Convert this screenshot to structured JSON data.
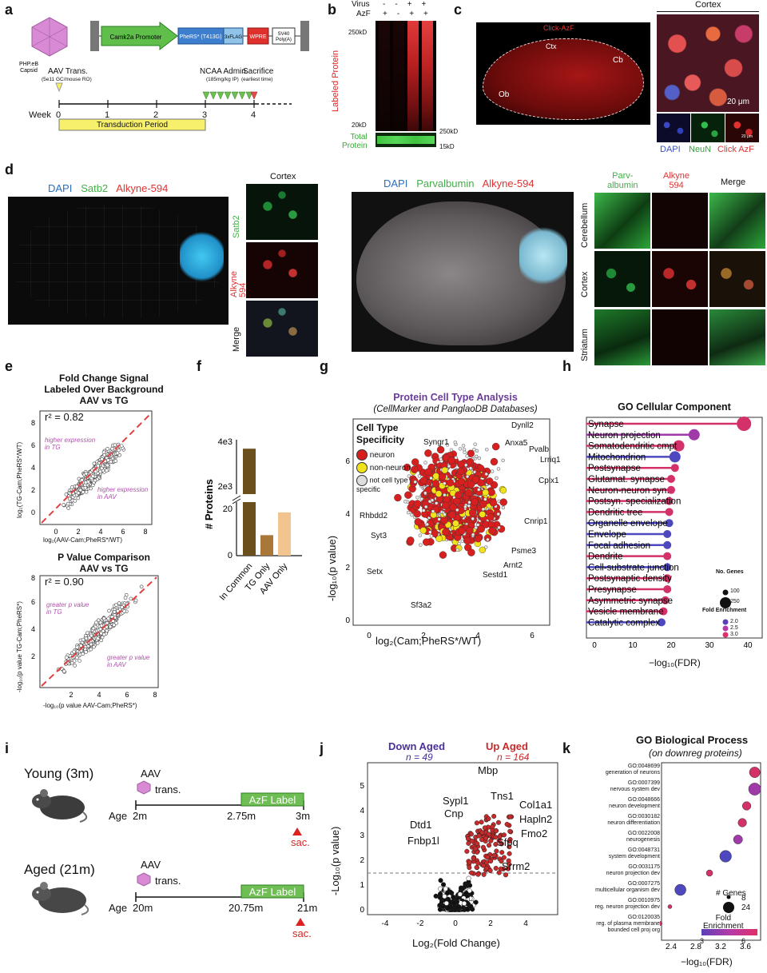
{
  "panels": {
    "a": "a",
    "b": "b",
    "c": "c",
    "d": "d",
    "e": "e",
    "f": "f",
    "g": "g",
    "h": "h",
    "i": "i",
    "j": "j",
    "k": "k"
  },
  "a": {
    "capsid": "PHP.eB\nCapsid",
    "itr": "ITR",
    "promoter": "Camk2a Promoter",
    "pheRS": "PheRS* (T413G)",
    "flag": "3xFLAG",
    "wpre": "WPRE",
    "sv40": "SV40\nPoly(A)",
    "aav_trans": "AAV Trans.",
    "aav_dose": "(5e11 GC/mouse RO)",
    "ncaa": "NCAA Admin.",
    "ncaa_dose": "(185mg/kg IP)",
    "sac": "Sacrifice",
    "sac_note": "(earliest time)",
    "week": "Week",
    "weeks": [
      "0",
      "1",
      "2",
      "3",
      "4"
    ],
    "transduction": "Transduction Period",
    "colors": {
      "capsid": "#d88bd4",
      "promoter": "#5fbf4a",
      "pheRS": "#3d7ecf",
      "flag": "#8fc4e8",
      "wpre": "#e0302c",
      "bar": "#f7f06b"
    }
  },
  "b": {
    "virus": "Virus",
    "azf": "AzF",
    "virus_marks": [
      "-",
      "-",
      "+",
      "+"
    ],
    "azf_marks": [
      "+",
      "-",
      "+",
      "+"
    ],
    "kd250": "250kD",
    "kd20": "20kD",
    "kd250b": "250kD",
    "kd15": "15kD",
    "labeled": "Labeled Protein",
    "total": "Total\nProtein"
  },
  "c": {
    "title": "Click-AzF",
    "ctx": "Ctx",
    "cb": "Cb",
    "ob": "Ob",
    "cortex": "Cortex",
    "scale": "20 μm",
    "scale_small": "20 μm",
    "dapi": "DAPI",
    "neun": "NeuN",
    "click": "Click AzF"
  },
  "d": {
    "dapi": "DAPI",
    "satb2": "Satb2",
    "alkyne": "Alkyne-594",
    "cortex": "Cortex",
    "row_satb2": "Satb2",
    "row_alkyne": "Alkyne\n594",
    "row_merge": "Merge",
    "dapi2": "DAPI",
    "parv": "Parvalbumin",
    "alkyne2": "Alkyne-594",
    "col_parv": "Parv-\nalbumin",
    "col_alk": "Alkyne\n594",
    "col_merge": "Merge",
    "row_cereb": "Cerebellum",
    "row_cortex": "Cortex",
    "row_striatum": "Striatum"
  },
  "e": {
    "title1": "Fold Change Signal",
    "title2": "Labeled Over Background",
    "title3": "AAV vs TG",
    "r2a": "r² = 0.82",
    "higher_tg": "higher expression\nin TG",
    "higher_aav": "higher expression\nin AAV",
    "xlab1": "log₂(AAV-Cam;PheRS*/WT)",
    "ylab1": "log₂(TG-Cam;PheRS*/WT)",
    "ticks_x": [
      "0",
      "2",
      "4",
      "6",
      "8"
    ],
    "ticks_y": [
      "0",
      "2",
      "4",
      "6",
      "8"
    ],
    "title4": "P Value Comparison",
    "title5": "AAV vs TG",
    "r2b": "r² = 0.90",
    "greater_tg": "greater p value\nin TG",
    "greater_aav": "greater p value\nin AAV",
    "xlab2": "-log₁₀(p value AAV-Cam;PheRS*)",
    "ylab2": "-log₁₀(p value TG-Cam;PheRS*)"
  },
  "f": {
    "ylabel": "# Proteins",
    "ticks": [
      "0",
      "20",
      "2e3",
      "4e3"
    ],
    "categories": [
      "In Common",
      "TG Only",
      "AAV Only"
    ]
  },
  "g": {
    "title": "Protein Cell Type Analysis",
    "subtitle": "(CellMarker and PanglaoDB Databases)",
    "legend_title": "Cell Type\nSpecificity",
    "legend": [
      "neuron",
      "non-neuron",
      "not cell type\nspecific"
    ],
    "xlabel": "log₂(Cam;PheRS*/WT)",
    "ylabel": "-log₁₀(p value)",
    "xticks": [
      "0",
      "2",
      "4",
      "6"
    ],
    "yticks": [
      "0",
      "2",
      "4",
      "6"
    ],
    "genes": [
      "Dynll2",
      "Anxa5",
      "Pvalb",
      "Lrriq1",
      "Syngr1",
      "Cplx1",
      "Rhbdd2",
      "Syt3",
      "Cnrip1",
      "Psme3",
      "Arnt2",
      "Sestd1",
      "Setx",
      "Sf3a2"
    ]
  },
  "h": {
    "title": "GO Cellular Component",
    "terms": [
      "Synapse",
      "Neuron projection",
      "Somatodendritic cmpt",
      "Mitochondrion",
      "Postsynapse",
      "Glutamat. synapse",
      "Neuron-neuron syn.",
      "Postsyn. specialization",
      "Dendritic tree",
      "Organelle envelope",
      "Envelope",
      "Focal adhesion",
      "Dendrite",
      "Cell-substrate junction",
      "Postsynaptic density",
      "Presynapse",
      "Asymmetric synapse",
      "Vesicle membrane",
      "Catalytic complex"
    ],
    "xlabel": "−log₁₀(FDR)",
    "xticks": [
      "0",
      "10",
      "20",
      "30",
      "40"
    ],
    "ng_title": "No. Genes",
    "ng_vals": [
      "100",
      "250"
    ],
    "fe_title": "Fold Enrichment",
    "fe_vals": [
      "2.0",
      "2.5",
      "3.0"
    ]
  },
  "i": {
    "young": "Young (3m)",
    "aged": "Aged (21m)",
    "aav": "AAV",
    "trans": "trans.",
    "azf_label": "AzF Label",
    "age": "Age",
    "young_ages": [
      "2m",
      "2.75m",
      "3m"
    ],
    "aged_ages": [
      "20m",
      "20.75m",
      "21m"
    ],
    "sac": "sac."
  },
  "j": {
    "down": "Down Aged",
    "down_n": "n = 49",
    "up": "Up Aged",
    "up_n": "n = 164",
    "xlabel": "Log₂(Fold Change)",
    "ylabel": "-Log₁₀(p value)",
    "xticks": [
      "-4",
      "-2",
      "0",
      "2",
      "4"
    ],
    "yticks": [
      "0",
      "1",
      "2",
      "3",
      "4",
      "5"
    ],
    "genes_up": [
      "Mbp",
      "Tns1",
      "Col1a1",
      "Hapln2",
      "Fmo2",
      "Sfpq",
      "Srrm2"
    ],
    "genes_down": [
      "Sypl1",
      "Cnp",
      "Dtd1",
      "Fnbp1l"
    ]
  },
  "k": {
    "title": "GO Biological Process",
    "subtitle": "(on downreg proteins)",
    "terms": [
      {
        "id": "GO:0048699",
        "name": "generation of neurons"
      },
      {
        "id": "GO:0007399",
        "name": "nervous system dev"
      },
      {
        "id": "GO:0048666",
        "name": "neuron development"
      },
      {
        "id": "GO:0030182",
        "name": "neuron differentiation"
      },
      {
        "id": "GO:0022008",
        "name": "neurogenesis"
      },
      {
        "id": "GO:0048731",
        "name": "system development"
      },
      {
        "id": "GO:0031175",
        "name": "neuron projection dev"
      },
      {
        "id": "GO:0007275",
        "name": "multicellular organism dev"
      },
      {
        "id": "GO:0010975",
        "name": "reg. neuron projection dev"
      },
      {
        "id": "GO:0120035",
        "name": "reg. of plasma membrane\nbounded cell proj org"
      }
    ],
    "xlabel": "−log₁₀(FDR)",
    "xticks": [
      "2.4",
      "2.8",
      "3.2",
      "3.6"
    ],
    "genes_title": "# Genes",
    "genes_vals": [
      "8",
      "24"
    ],
    "fe_title": "Fold\nEnrichment",
    "fe_vals": [
      "3",
      "6"
    ]
  },
  "chart_data": [
    {
      "type": "bar",
      "title": "",
      "categories": [
        "In Common",
        "TG Only",
        "AAV Only"
      ],
      "values": [
        3600,
        9,
        19
      ],
      "ylabel": "# Proteins",
      "colors": [
        "#6b4f1d",
        "#a9773a",
        "#f2c48f"
      ],
      "scale": "broken axis (0-20, 2e3-4e3)"
    },
    {
      "type": "bar",
      "title": "GO Cellular Component",
      "orientation": "horizontal",
      "categories": [
        "Synapse",
        "Neuron projection",
        "Somatodendritic cmpt",
        "Mitochondrion",
        "Postsynapse",
        "Glutamat. synapse",
        "Neuron-neuron syn.",
        "Postsyn. specialization",
        "Dendritic tree",
        "Organelle envelope",
        "Envelope",
        "Focal adhesion",
        "Dendrite",
        "Cell-substrate junction",
        "Postsynaptic density",
        "Presynapse",
        "Asymmetric synapse",
        "Vesicle membrane",
        "Catalytic complex"
      ],
      "values": [
        39,
        26,
        22,
        21,
        21,
        20,
        20,
        19.5,
        19.5,
        19.5,
        19,
        19,
        19,
        19,
        19,
        19,
        18.5,
        18,
        17.5
      ],
      "fold_enrichment": [
        3.0,
        2.4,
        2.9,
        2.0,
        2.8,
        3.0,
        3.0,
        3.0,
        3.0,
        2.1,
        2.1,
        2.2,
        3.0,
        2.2,
        3.0,
        2.9,
        3.0,
        3.0,
        2.0
      ],
      "xlabel": "−log₁₀(FDR)",
      "xlim": [
        0,
        40
      ]
    },
    {
      "type": "scatter",
      "title": "GO Biological Process",
      "categories": [
        "GO:0048699",
        "GO:0007399",
        "GO:0048666",
        "GO:0030182",
        "GO:0022008",
        "GO:0048731",
        "GO:0031175",
        "GO:0007275",
        "GO:0010975",
        "GO:0120035"
      ],
      "values": [
        3.75,
        3.75,
        3.62,
        3.55,
        3.48,
        3.28,
        3.02,
        2.55,
        2.38,
        2.22
      ],
      "genes": [
        20,
        23,
        16,
        16,
        17,
        22,
        12,
        21,
        4,
        8
      ],
      "fold_enrichment": [
        5.5,
        4.0,
        5.8,
        5.5,
        4.8,
        3.2,
        5.6,
        3.0,
        6.0,
        6.0
      ],
      "xlabel": "−log₁₀(FDR)",
      "xlim": [
        2.2,
        3.9
      ]
    }
  ]
}
